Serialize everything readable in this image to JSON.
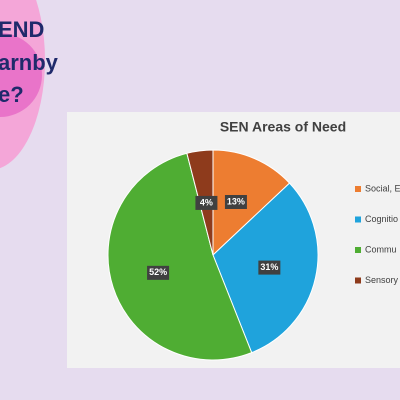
{
  "slide": {
    "title_lines": [
      "END",
      "arnby",
      "e?"
    ]
  },
  "chart_data": {
    "type": "pie",
    "title": "SEN Areas of Need",
    "categories": [
      "Social, E",
      "Cognitio",
      "Commu",
      "Sensory"
    ],
    "values": [
      13,
      31,
      52,
      4
    ],
    "value_labels": [
      "13%",
      "31%",
      "52%",
      "4%"
    ],
    "colors": [
      "#ed7d31",
      "#1fa3dc",
      "#4fad33",
      "#8e3b1c"
    ],
    "legend": "right"
  }
}
